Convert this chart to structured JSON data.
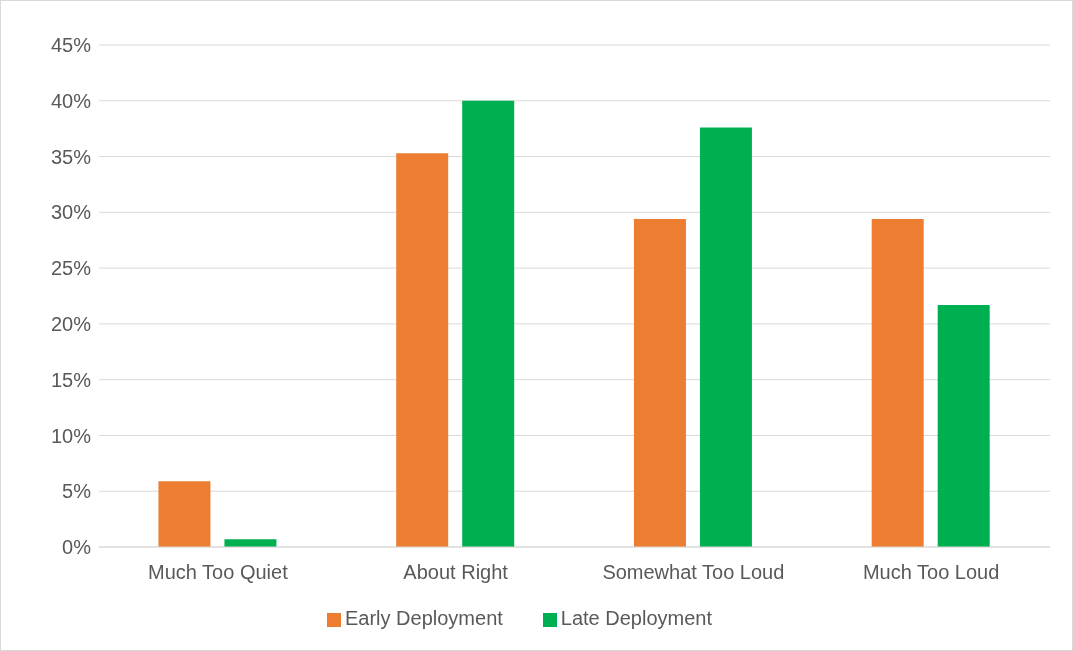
{
  "chart_data": {
    "type": "bar",
    "categories": [
      "Much Too Quiet",
      "About Right",
      "Somewhat Too Loud",
      "Much Too Loud"
    ],
    "series": [
      {
        "name": "Early Deployment",
        "color": "#ed7d31",
        "values": [
          5.9,
          35.3,
          29.4,
          29.4
        ]
      },
      {
        "name": "Late Deployment",
        "color": "#00b050",
        "values": [
          0.7,
          40,
          37.6,
          21.7
        ]
      }
    ],
    "ylim": [
      0,
      45
    ],
    "yticks": [
      {
        "value": 0,
        "label": "0%"
      },
      {
        "value": 5,
        "label": "5%"
      },
      {
        "value": 10,
        "label": "10%"
      },
      {
        "value": 15,
        "label": "15%"
      },
      {
        "value": 20,
        "label": "20%"
      },
      {
        "value": 25,
        "label": "25%"
      },
      {
        "value": 30,
        "label": "30%"
      },
      {
        "value": 35,
        "label": "35%"
      },
      {
        "value": 40,
        "label": "40%"
      },
      {
        "value": 45,
        "label": "45%"
      }
    ],
    "grid": "y",
    "legend": "bottom"
  }
}
